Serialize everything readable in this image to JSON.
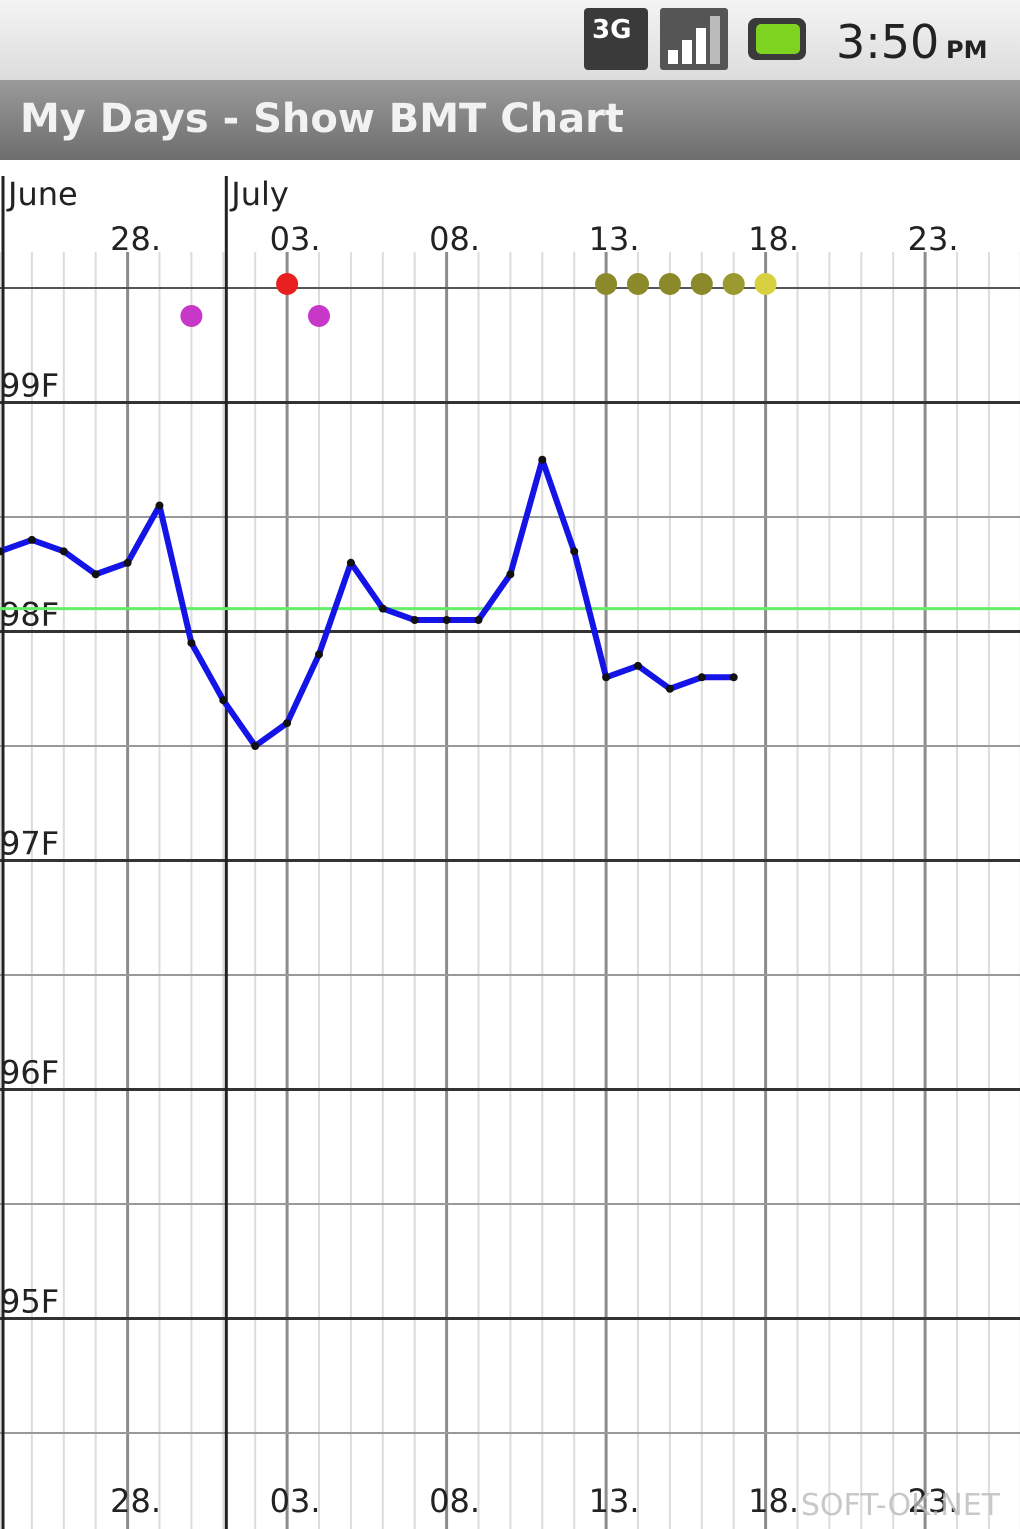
{
  "status_bar": {
    "network": "3G",
    "time": "3:50",
    "ampm": "PM"
  },
  "title_bar": {
    "title": "My Days - Show BMT Chart"
  },
  "watermark": "SOFT-OK.NET",
  "chart_data": {
    "type": "line",
    "months": [
      {
        "label": "June",
        "start": 0
      },
      {
        "label": "July",
        "start": 7
      }
    ],
    "categories": [
      null,
      null,
      null,
      null,
      "28.",
      null,
      null,
      null,
      null,
      "03.",
      null,
      null,
      null,
      null,
      "08.",
      null,
      null,
      null,
      null,
      "13.",
      null,
      null,
      null,
      null,
      "18.",
      null,
      null,
      null,
      null,
      "23.",
      null,
      null,
      null
    ],
    "series": [
      {
        "color": "#1414e6",
        "values": [
          98.35,
          98.4,
          98.35,
          98.25,
          98.3,
          98.55,
          97.95,
          97.7,
          97.5,
          97.6,
          97.9,
          98.3,
          98.1,
          98.05,
          98.05,
          98.05,
          98.25,
          98.75,
          98.35,
          97.8,
          97.85,
          97.75,
          97.8,
          97.8,
          null,
          null,
          null,
          null,
          null,
          null,
          null,
          null,
          null
        ]
      }
    ],
    "coverline": {
      "value": 98.1,
      "color": "#66ee66"
    },
    "event_rows": [
      [
        {
          "day": 9,
          "color": "#e82020"
        },
        {
          "day": 19,
          "color": "#8a8a2a"
        },
        {
          "day": 20,
          "color": "#8a8a2a"
        },
        {
          "day": 21,
          "color": "#8a8a2a"
        },
        {
          "day": 22,
          "color": "#8a8a2a"
        },
        {
          "day": 23,
          "color": "#9a9a30"
        },
        {
          "day": 24,
          "color": "#d8d040"
        }
      ],
      [
        {
          "day": 6,
          "color": "#c838c8"
        },
        {
          "day": 10,
          "color": "#c838c8"
        }
      ]
    ],
    "ylim": [
      94.1,
      99.5
    ],
    "yticks": [
      {
        "value": 99,
        "label": "99F"
      },
      {
        "value": 98,
        "label": "98F"
      },
      {
        "value": 97,
        "label": "97F"
      },
      {
        "value": 96,
        "label": "96F"
      },
      {
        "value": 95,
        "label": "95F"
      }
    ],
    "grid": true
  }
}
